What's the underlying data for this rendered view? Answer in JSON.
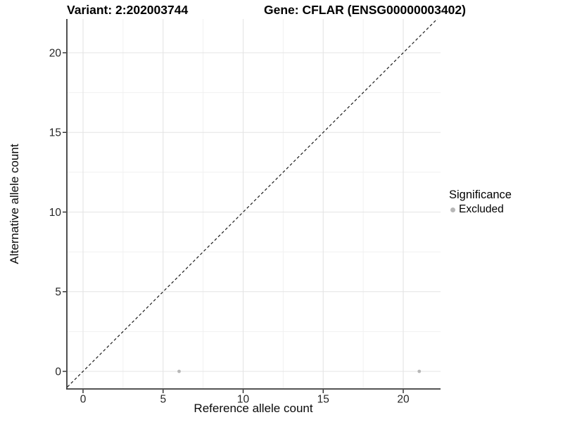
{
  "title": {
    "variant": "Variant: 2:202003744",
    "gene": "Gene: CFLAR (ENSG00000003402)"
  },
  "chart_data": {
    "type": "scatter",
    "title_left": "Variant: 2:202003744",
    "title_right": "Gene: CFLAR (ENSG00000003402)",
    "xlabel": "Reference allele count",
    "ylabel": "Alternative allele count",
    "xlim": [
      -1.05,
      22.3
    ],
    "ylim": [
      -1.1,
      22.2
    ],
    "x_ticks": [
      0,
      5,
      10,
      15,
      20
    ],
    "y_ticks": [
      0,
      5,
      10,
      15,
      20
    ],
    "x_minor_ticks": [
      2.5,
      7.5,
      12.5,
      17.5
    ],
    "y_minor_ticks": [
      2.5,
      7.5,
      12.5,
      17.5
    ],
    "grid": true,
    "reference_line": {
      "type": "identity",
      "slope": 1,
      "intercept": 0,
      "style": "dashed",
      "color": "#1c1c1c"
    },
    "series": [
      {
        "name": "Excluded",
        "color": "#b7b7b7",
        "points": [
          {
            "x": 6,
            "y": 0
          },
          {
            "x": 21,
            "y": 0
          }
        ]
      }
    ],
    "legend": {
      "title": "Significance",
      "position": "right",
      "items": [
        {
          "label": "Excluded",
          "color": "#b7b7b7"
        }
      ]
    },
    "colors": {
      "background": "#ffffff",
      "grid_major": "#e4e4e4",
      "grid_minor": "#f1f1f1",
      "axis_line": "#3c3c3c",
      "tick_mark": "#2a2a2a",
      "tick_text": "#262626",
      "point": "#b7b7b7"
    }
  }
}
